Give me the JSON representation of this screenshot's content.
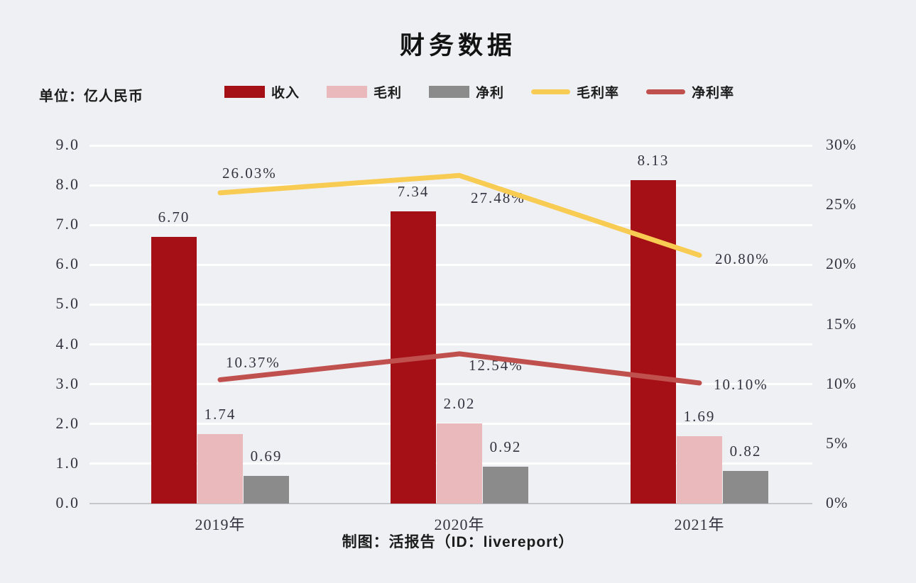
{
  "unit_label": "单位：亿人民币",
  "footer": "制图：活报告（ID：livereport）",
  "chart_data": {
    "type": "combo-bar-line",
    "title": "财务数据",
    "categories": [
      "2019年",
      "2020年",
      "2021年"
    ],
    "bar_series": [
      {
        "key": "revenue",
        "name": "收入",
        "color": "#a50f16",
        "values": [
          6.7,
          7.34,
          8.13
        ],
        "labels": [
          "6.70",
          "7.34",
          "8.13"
        ]
      },
      {
        "key": "gross-profit",
        "name": "毛利",
        "color": "#eab9bb",
        "values": [
          1.74,
          2.02,
          1.69
        ],
        "labels": [
          "1.74",
          "2.02",
          "1.69"
        ]
      },
      {
        "key": "net-profit",
        "name": "净利",
        "color": "#8b8b8b",
        "values": [
          0.69,
          0.92,
          0.82
        ],
        "labels": [
          "0.69",
          "0.92",
          "0.82"
        ]
      }
    ],
    "line_series": [
      {
        "key": "gross-margin",
        "name": "毛利率",
        "color": "#f8cb53",
        "values": [
          26.03,
          27.48,
          20.8
        ],
        "labels": [
          "26.03%",
          "27.48%",
          "20.80%"
        ]
      },
      {
        "key": "net-margin",
        "name": "净利率",
        "color": "#c0504d",
        "values": [
          10.37,
          12.54,
          10.1
        ],
        "labels": [
          "10.37%",
          "12.54%",
          "10.10%"
        ]
      }
    ],
    "y_left": {
      "min": 0,
      "max": 9,
      "ticks": [
        "9.0",
        "8.0",
        "7.0",
        "6.0",
        "5.0",
        "4.0",
        "3.0",
        "2.0",
        "1.0",
        "0.0"
      ]
    },
    "y_right": {
      "min": 0,
      "max": 30,
      "ticks": [
        "30%",
        "25%",
        "20%",
        "15%",
        "10%",
        "5%",
        "0%"
      ]
    },
    "grid": true,
    "legend_position": "top"
  }
}
